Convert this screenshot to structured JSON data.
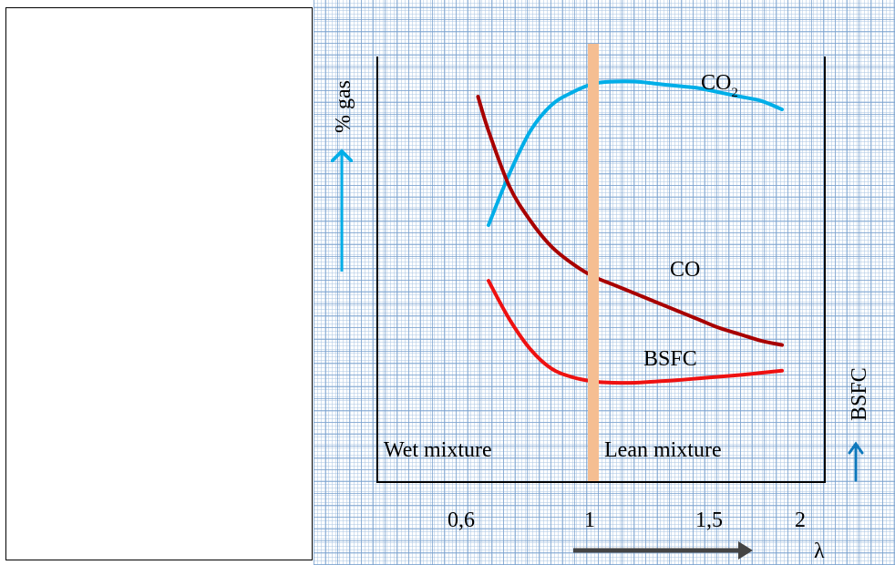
{
  "chart_data": {
    "type": "line",
    "xlabel": "λ",
    "ylabel_left": "% gas",
    "ylabel_right": "BSFC",
    "x_ticks": [
      "0,6",
      "1",
      "1,5",
      "2"
    ],
    "region_labels": {
      "left": "Wet mixture",
      "right": "Lean mixture"
    },
    "stoichiometric_marker": {
      "x": 1,
      "color": "#f5be92"
    },
    "series": [
      {
        "name": "CO2",
        "label_base": "CO",
        "label_sub": "2",
        "color": "#00aee8",
        "x": [
          0.5,
          0.6,
          0.7,
          0.8,
          0.9,
          1.0,
          1.1,
          1.2,
          1.3,
          1.4,
          1.5,
          1.6,
          1.7,
          1.8,
          1.9
        ],
        "y": [
          0.6,
          0.72,
          0.82,
          0.88,
          0.91,
          0.93,
          0.935,
          0.935,
          0.93,
          0.925,
          0.92,
          0.91,
          0.9,
          0.89,
          0.87
        ]
      },
      {
        "name": "CO",
        "label": "CO",
        "color": "#a80000",
        "x": [
          0.45,
          0.5,
          0.6,
          0.7,
          0.8,
          0.9,
          1.0,
          1.1,
          1.2,
          1.3,
          1.4,
          1.5,
          1.6,
          1.7,
          1.8,
          1.9
        ],
        "y": [
          0.9,
          0.82,
          0.69,
          0.61,
          0.55,
          0.51,
          0.48,
          0.46,
          0.44,
          0.42,
          0.4,
          0.38,
          0.36,
          0.345,
          0.33,
          0.32
        ]
      },
      {
        "name": "BSFC",
        "label": "BSFC",
        "color": "#ee1111",
        "x": [
          0.5,
          0.6,
          0.7,
          0.8,
          0.9,
          1.0,
          1.1,
          1.2,
          1.3,
          1.4,
          1.5,
          1.6,
          1.7,
          1.8,
          1.9
        ],
        "y": [
          0.47,
          0.38,
          0.31,
          0.265,
          0.245,
          0.235,
          0.232,
          0.232,
          0.235,
          0.238,
          0.242,
          0.246,
          0.25,
          0.255,
          0.26
        ]
      }
    ],
    "arrow_color_gas": "#00aee8",
    "arrow_color_bsfc": "#0e78bc",
    "arrow_color_lambda": "#444444",
    "grid": true,
    "legend": "none"
  }
}
